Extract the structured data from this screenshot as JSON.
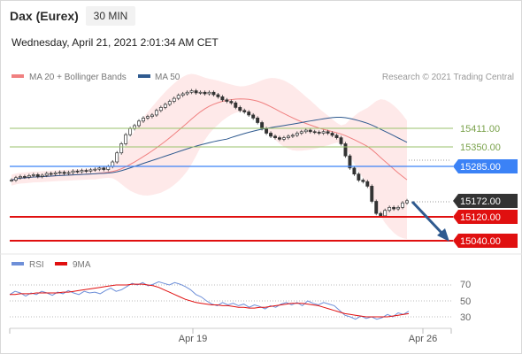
{
  "header": {
    "title": "Dax (Eurex)",
    "timeframe": "30 MIN",
    "datetime": "Wednesday, April 21, 2021 2:01:34 AM CET"
  },
  "legend": {
    "ma20": "MA 20 + Bollinger Bands",
    "ma50": "MA 50",
    "credit": "Research © 2021 Trading Central",
    "rsi": "RSI",
    "rsi_ma": "9MA"
  },
  "colors": {
    "ma20": "#f08080",
    "ma50": "#2f5a8f",
    "support": "#e01010",
    "resistance_green": "#9ac26b",
    "pivot_blue": "#3b82f6",
    "current": "#333333",
    "arrow": "#2f5a8f",
    "rsi": "#6e8fd8",
    "rsi_ma": "#e01010"
  },
  "chart_data": [
    {
      "type": "line",
      "name": "price",
      "x_ticks": [
        "Apr 19",
        "Apr 26"
      ],
      "levels": [
        {
          "value": "15411.00",
          "style": "resistance-green"
        },
        {
          "value": "15350.00",
          "style": "resistance-green"
        },
        {
          "value": "15285.00",
          "style": "pivot-blue"
        },
        {
          "value": "15172.00",
          "style": "current"
        },
        {
          "value": "15120.00",
          "style": "support-red"
        },
        {
          "value": "15040.00",
          "style": "support-red"
        }
      ],
      "series": [
        {
          "name": "MA 20 + Bollinger Bands",
          "type": "line"
        },
        {
          "name": "MA 50",
          "type": "line"
        }
      ],
      "close": [
        15240,
        15248,
        15252,
        15250,
        15255,
        15258,
        15252,
        15256,
        15262,
        15260,
        15264,
        15266,
        15262,
        15265,
        15270,
        15268,
        15272,
        15270,
        15274,
        15276,
        15280,
        15275,
        15285,
        15300,
        15330,
        15360,
        15390,
        15410,
        15420,
        15435,
        15445,
        15450,
        15455,
        15470,
        15480,
        15490,
        15500,
        15510,
        15520,
        15525,
        15530,
        15535,
        15528,
        15530,
        15525,
        15530,
        15522,
        15515,
        15505,
        15500,
        15495,
        15480,
        15470,
        15465,
        15455,
        15445,
        15430,
        15410,
        15395,
        15385,
        15380,
        15375,
        15380,
        15385,
        15388,
        15395,
        15400,
        15405,
        15400,
        15398,
        15395,
        15400,
        15395,
        15388,
        15380,
        15360,
        15320,
        15280,
        15260,
        15240,
        15235,
        15220,
        15170,
        15130,
        15122,
        15140,
        15150,
        15145,
        15150,
        15165,
        15172
      ],
      "trend_projection": {
        "from": 15172,
        "to": 15040
      }
    },
    {
      "type": "line",
      "name": "rsi",
      "y_ticks": [
        "70",
        "50",
        "30"
      ],
      "ylim": [
        20,
        80
      ],
      "series": [
        {
          "name": "RSI",
          "values": [
            58,
            62,
            60,
            56,
            60,
            58,
            62,
            60,
            57,
            61,
            59,
            63,
            60,
            58,
            62,
            60,
            61,
            59,
            63,
            66,
            62,
            64,
            68,
            72,
            70,
            73,
            69,
            71,
            74,
            72,
            70,
            73,
            71,
            68,
            64,
            58,
            55,
            50,
            46,
            44,
            48,
            45,
            47,
            44,
            46,
            42,
            45,
            43,
            40,
            44,
            42,
            46,
            48,
            45,
            48,
            44,
            50,
            47,
            45,
            48,
            46,
            44,
            38,
            32,
            30,
            27,
            31,
            28,
            30,
            27,
            29,
            33,
            30,
            35,
            33,
            37
          ]
        },
        {
          "name": "9MA",
          "values": [
            58,
            58,
            59,
            59,
            59,
            60,
            60,
            60,
            60,
            60,
            61,
            61,
            62,
            63,
            64,
            65,
            66,
            67,
            68,
            69,
            70,
            70,
            70,
            71,
            71,
            71,
            70,
            69,
            67,
            64,
            61,
            58,
            55,
            52,
            50,
            48,
            47,
            46,
            45,
            45,
            44,
            44,
            43,
            42,
            42,
            41,
            41,
            42,
            42,
            43,
            44,
            45,
            46,
            47,
            47,
            47,
            46,
            45,
            44,
            42,
            40,
            38,
            36,
            34,
            33,
            32,
            31,
            30,
            30,
            30,
            30,
            30,
            31,
            32,
            33,
            34
          ]
        }
      ]
    }
  ]
}
